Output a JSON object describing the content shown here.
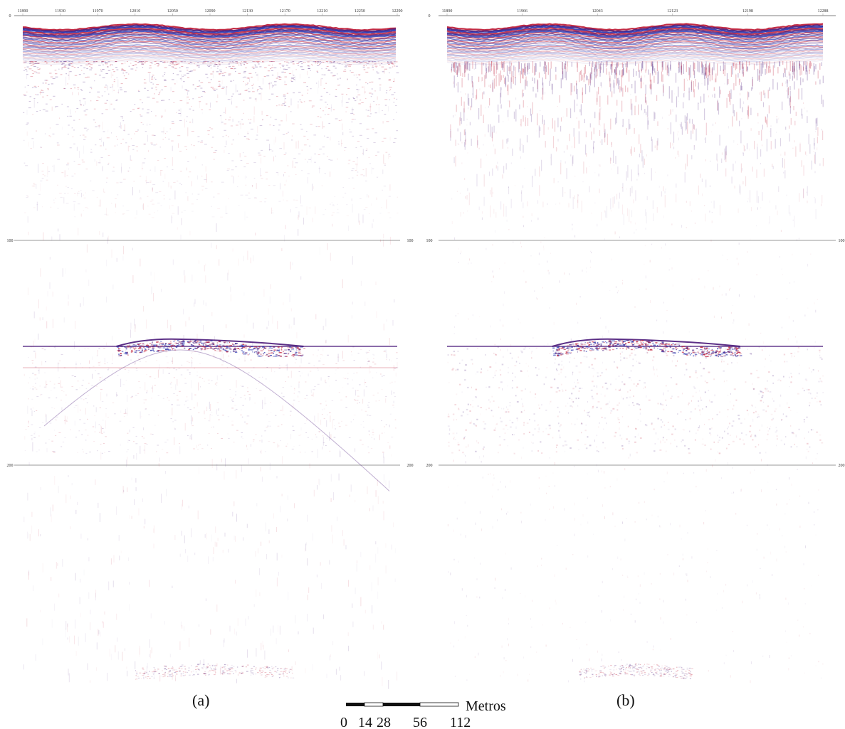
{
  "panels": [
    {
      "id": "a",
      "caption": "(a)",
      "trace_ticks": [
        "11890",
        "11930",
        "11970",
        "12010",
        "12050",
        "12090",
        "12130",
        "12170",
        "12210",
        "12250",
        "12290"
      ],
      "depth_ticks": [
        "0",
        "100",
        "200"
      ]
    },
    {
      "id": "b",
      "caption": "(b)",
      "trace_ticks": [
        "11890",
        "11966",
        "12043",
        "12123",
        "12198",
        "12288"
      ],
      "depth_ticks": [
        "0",
        "100",
        "200"
      ]
    }
  ],
  "scale_bar": {
    "unit": "Metros",
    "labels": [
      "0",
      "14",
      "28",
      "56",
      "112"
    ]
  },
  "colors": {
    "reflector_dark": "#4a1a7a",
    "reflector_red": "#c0203a",
    "reflector_blue": "#2030b0",
    "background": "#ffffff",
    "grid": "#9a9a9a"
  }
}
